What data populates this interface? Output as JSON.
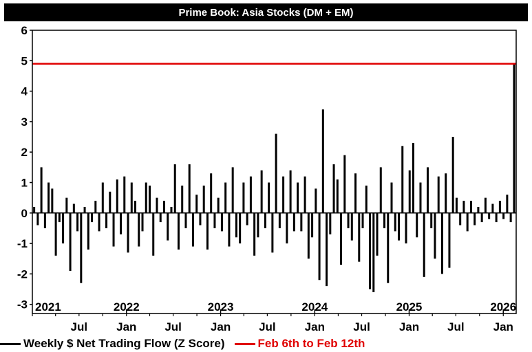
{
  "chart_data": {
    "type": "bar",
    "title": "Prime Book: Asia Stocks (DM + EM)",
    "ylabel": "",
    "xlabel": "",
    "ylim": [
      -3.3,
      6
    ],
    "yticks": [
      -3,
      -2,
      -1,
      0,
      1,
      2,
      3,
      4,
      5,
      6
    ],
    "year_labels": [
      "2021",
      "2022",
      "2023",
      "2024",
      "2025",
      "2026"
    ],
    "month_labels": [
      "Jul",
      "Jan",
      "Jul",
      "Jan",
      "Jul",
      "Jan",
      "Jul",
      "Jan",
      "Jul",
      "Jan",
      "Jul",
      "Jan"
    ],
    "x_start": "2021-01-01",
    "x_end": "2026-02-20",
    "grid": false,
    "legend_position": "bottom-left",
    "series": [
      {
        "name": "Weekly $ Net Trading Flow (Z Score)",
        "color": "#000000",
        "dates": [
          "2021-01-08",
          "2021-01-22",
          "2021-02-05",
          "2021-02-19",
          "2021-03-05",
          "2021-03-19",
          "2021-04-02",
          "2021-04-16",
          "2021-04-30",
          "2021-05-14",
          "2021-05-28",
          "2021-06-11",
          "2021-06-25",
          "2021-07-09",
          "2021-07-23",
          "2021-08-06",
          "2021-08-20",
          "2021-09-03",
          "2021-09-17",
          "2021-10-01",
          "2021-10-15",
          "2021-10-29",
          "2021-11-12",
          "2021-11-26",
          "2021-12-10",
          "2021-12-24",
          "2022-01-07",
          "2022-01-21",
          "2022-02-04",
          "2022-02-18",
          "2022-03-04",
          "2022-03-18",
          "2022-04-01",
          "2022-04-15",
          "2022-04-29",
          "2022-05-13",
          "2022-05-27",
          "2022-06-10",
          "2022-06-24",
          "2022-07-08",
          "2022-07-22",
          "2022-08-05",
          "2022-08-19",
          "2022-09-02",
          "2022-09-16",
          "2022-09-30",
          "2022-10-14",
          "2022-10-28",
          "2022-11-11",
          "2022-11-25",
          "2022-12-09",
          "2022-12-23",
          "2023-01-06",
          "2023-01-20",
          "2023-02-03",
          "2023-02-17",
          "2023-03-03",
          "2023-03-17",
          "2023-03-31",
          "2023-04-14",
          "2023-04-28",
          "2023-05-12",
          "2023-05-26",
          "2023-06-09",
          "2023-06-23",
          "2023-07-07",
          "2023-07-21",
          "2023-08-04",
          "2023-08-18",
          "2023-09-01",
          "2023-09-15",
          "2023-09-29",
          "2023-10-13",
          "2023-10-27",
          "2023-11-10",
          "2023-11-24",
          "2023-12-08",
          "2023-12-22",
          "2024-01-05",
          "2024-01-19",
          "2024-02-02",
          "2024-02-16",
          "2024-03-01",
          "2024-03-15",
          "2024-03-29",
          "2024-04-12",
          "2024-04-26",
          "2024-05-10",
          "2024-05-24",
          "2024-06-07",
          "2024-06-21",
          "2024-07-05",
          "2024-07-19",
          "2024-08-02",
          "2024-08-16",
          "2024-08-30",
          "2024-09-13",
          "2024-09-27",
          "2024-10-11",
          "2024-10-25",
          "2024-11-08",
          "2024-11-22",
          "2024-12-06",
          "2024-12-20",
          "2025-01-03",
          "2025-01-17",
          "2025-01-31",
          "2025-02-14",
          "2025-02-28",
          "2025-03-14",
          "2025-03-28",
          "2025-04-11",
          "2025-04-25",
          "2025-05-09",
          "2025-05-23",
          "2025-06-06",
          "2025-06-20",
          "2025-07-04",
          "2025-07-18",
          "2025-08-01",
          "2025-08-15",
          "2025-08-29",
          "2025-09-12",
          "2025-09-26",
          "2025-10-10",
          "2025-10-24",
          "2025-11-07",
          "2025-11-21",
          "2025-12-05",
          "2025-12-19",
          "2026-01-02",
          "2026-01-16",
          "2026-01-30",
          "2026-02-12"
        ],
        "values": [
          0.2,
          -0.4,
          1.5,
          -0.5,
          1.0,
          0.8,
          -1.4,
          -0.3,
          -1.0,
          0.5,
          -1.9,
          0.3,
          -0.6,
          -2.3,
          0.2,
          -1.2,
          -0.3,
          0.4,
          -0.6,
          1.0,
          -0.5,
          0.7,
          -1.1,
          1.1,
          -0.7,
          1.2,
          -1.3,
          1.0,
          0.4,
          -1.1,
          -0.6,
          1.0,
          0.9,
          -1.4,
          0.5,
          -0.3,
          0.4,
          -0.9,
          0.2,
          1.6,
          -1.2,
          0.9,
          -0.5,
          1.6,
          -1.1,
          0.6,
          -0.4,
          0.9,
          -1.2,
          1.3,
          -0.5,
          0.5,
          -0.6,
          1.0,
          -1.1,
          1.5,
          -0.8,
          -1.0,
          1.0,
          -0.4,
          1.2,
          -1.4,
          -0.8,
          1.4,
          -0.5,
          1.0,
          -1.3,
          2.6,
          -0.5,
          1.2,
          -1.0,
          1.4,
          -0.6,
          1.0,
          -0.6,
          1.2,
          -1.5,
          -0.8,
          0.8,
          -2.2,
          3.4,
          -2.4,
          -0.7,
          1.6,
          1.1,
          -1.7,
          1.9,
          -0.5,
          -0.9,
          1.3,
          -1.6,
          -0.5,
          0.9,
          -2.5,
          -2.6,
          -1.4,
          1.5,
          -0.5,
          -2.3,
          1.0,
          -0.6,
          -0.9,
          2.2,
          -1.0,
          1.4,
          2.3,
          -0.8,
          1.0,
          -2.1,
          1.5,
          -0.5,
          -1.5,
          1.2,
          -2.0,
          1.3,
          -1.8,
          2.5,
          0.5,
          -0.4,
          0.4,
          -0.6,
          0.4,
          -0.4,
          0.2,
          -0.3,
          0.5,
          -0.2,
          0.3,
          -0.3,
          0.4,
          -0.2,
          0.6,
          -0.3,
          4.9
        ]
      },
      {
        "name": "Feb 6th to Feb 12th",
        "color": "#e00000",
        "value": 4.9
      }
    ]
  }
}
